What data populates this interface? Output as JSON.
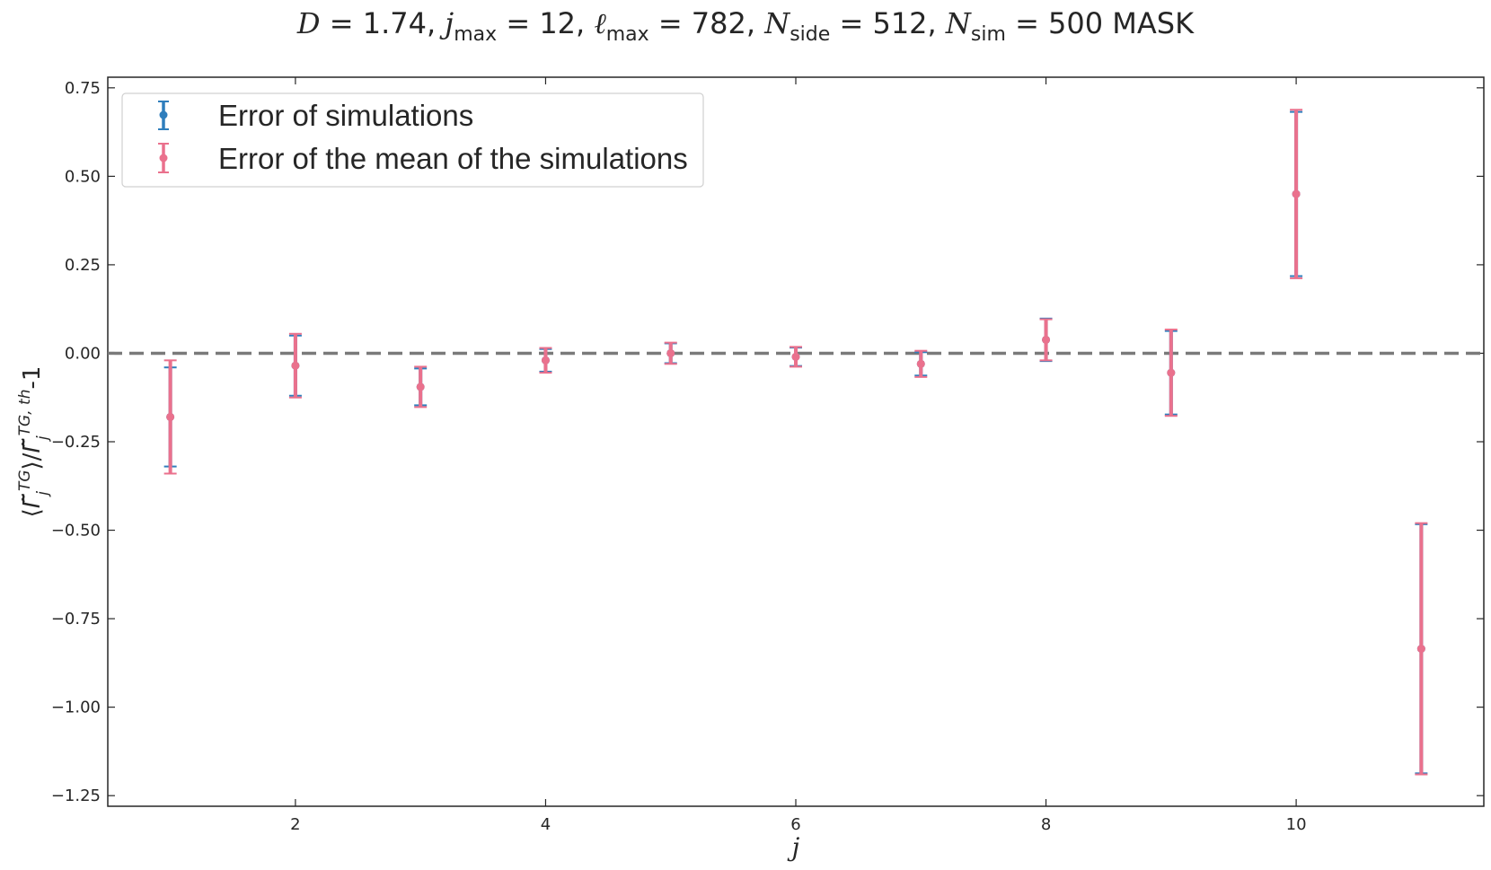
{
  "chart_data": {
    "type": "scatter",
    "title": "D = 1.74,  j_max = 12,  ℓ_max = 782,  N_side = 512, N_sim = 500 MASK",
    "title_parts": {
      "D": "1.74",
      "jmax": "12",
      "lmax": "782",
      "nside": "512",
      "nsim": "500",
      "suffix": "MASK"
    },
    "xlabel": "j",
    "ylabel": "⟨Γ̃_j^TG⟩/Γ̃_j^{TG,th} -1",
    "xlim": [
      0.5,
      11.5
    ],
    "ylim": [
      -1.28,
      0.78
    ],
    "x_ticks": [
      2,
      4,
      6,
      8,
      10
    ],
    "y_ticks": [
      0.75,
      0.5,
      0.25,
      0.0,
      -0.25,
      -0.5,
      -0.75,
      -1.0,
      -1.25
    ],
    "y_tick_labels": [
      "0.75",
      "0.50",
      "0.25",
      "0.00",
      "−0.25",
      "−0.50",
      "−0.75",
      "−1.00",
      "−1.25"
    ],
    "reference_line": {
      "y": 0.0,
      "style": "dashed",
      "color": "#7a7a7a"
    },
    "grid": false,
    "legend_position": "top-left",
    "series": [
      {
        "name": "Error of simulations",
        "color": "#2f7ebc",
        "x": [
          1,
          2,
          3,
          4,
          5,
          6,
          7,
          8,
          9,
          10,
          11
        ],
        "y": [
          -0.18,
          -0.035,
          -0.095,
          -0.02,
          0.0,
          -0.01,
          -0.03,
          0.038,
          -0.055,
          0.45,
          -0.835
        ],
        "err": [
          0.14,
          0.085,
          0.052,
          0.032,
          0.028,
          0.026,
          0.033,
          0.06,
          0.118,
          0.232,
          0.352
        ]
      },
      {
        "name": "Error of the mean of the simulations",
        "color": "#ea718d",
        "x": [
          1,
          2,
          3,
          4,
          5,
          6,
          7,
          8,
          9,
          10,
          11
        ],
        "y": [
          -0.18,
          -0.035,
          -0.095,
          -0.02,
          0.0,
          -0.01,
          -0.03,
          0.038,
          -0.055,
          0.45,
          -0.835
        ],
        "err": [
          0.16,
          0.09,
          0.057,
          0.035,
          0.03,
          0.028,
          0.037,
          0.058,
          0.122,
          0.238,
          0.355
        ]
      }
    ]
  }
}
